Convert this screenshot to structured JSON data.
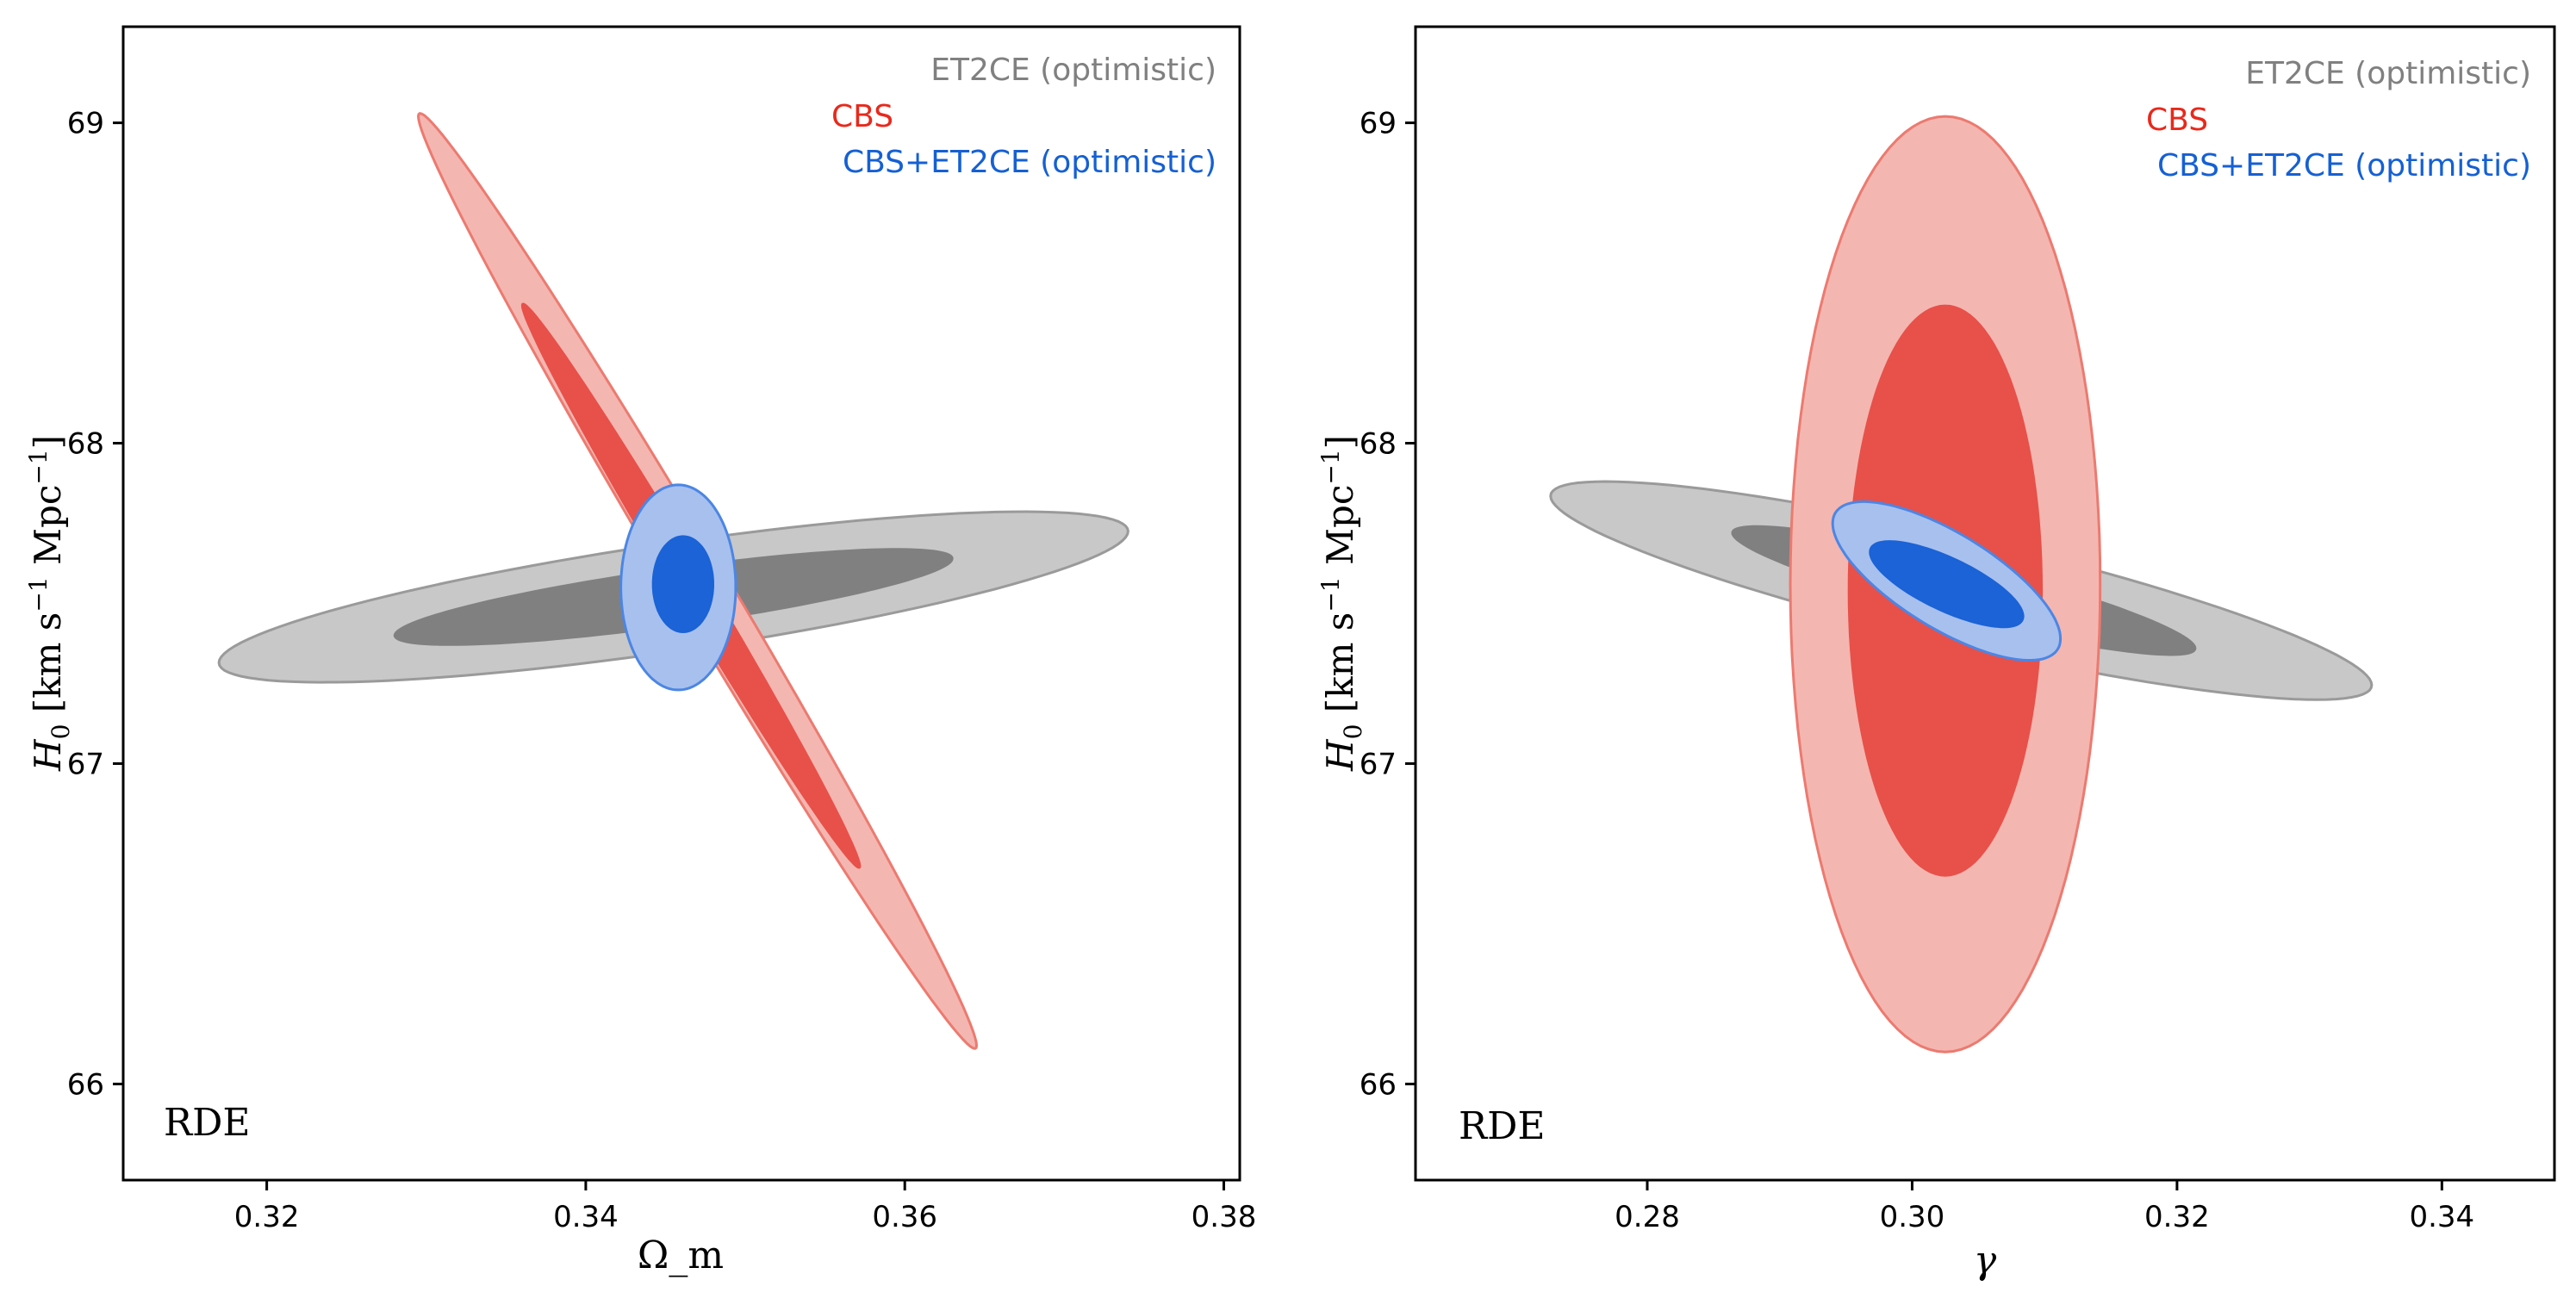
{
  "chart_data": [
    {
      "type": "contour",
      "panel": "left",
      "xlabel": "Ω_m",
      "ylabel": "H0 [km s^-1 Mpc^-1]",
      "xlim": [
        0.311,
        0.381
      ],
      "ylim": [
        65.7,
        69.3
      ],
      "xticks": [
        0.32,
        0.34,
        0.36,
        0.38
      ],
      "yticks": [
        66,
        67,
        68,
        69
      ],
      "xtick_labels": [
        "0.32",
        "0.34",
        "0.36",
        "0.38"
      ],
      "ytick_labels": [
        "66",
        "67",
        "68",
        "69"
      ],
      "annotation": "RDE",
      "legend": [
        {
          "label": "ET2CE (optimistic)",
          "color": "#808080"
        },
        {
          "label": "CBS",
          "color": "#e8291c"
        },
        {
          "label": "CBS+ET2CE (optimistic)",
          "color": "#1560d4"
        }
      ],
      "series": [
        {
          "name": "ET2CE (optimistic)",
          "level": "2sigma",
          "center": [
            0.3455,
            67.52
          ],
          "x_half_range": 0.0285,
          "y_at_xmin": 67.33,
          "y_at_xmax": 67.74,
          "fill": "#c8c8c8",
          "stroke": "#9a9a9a"
        },
        {
          "name": "ET2CE (optimistic)",
          "level": "1sigma",
          "center": [
            0.3455,
            67.52
          ],
          "x_half_range": 0.0175,
          "y_at_xmin": 67.42,
          "y_at_xmax": 67.66,
          "fill": "#808080",
          "stroke": "#808080"
        },
        {
          "name": "CBS",
          "level": "2sigma",
          "x_at_top": 0.3295,
          "y_top": 69.02,
          "x_at_bottom": 0.3645,
          "y_bottom": 66.12,
          "fill": "#f4b6b0",
          "stroke": "#ec7a70"
        },
        {
          "name": "CBS",
          "level": "1sigma",
          "x_at_top": 0.336,
          "y_top": 68.43,
          "x_at_bottom": 0.3572,
          "y_bottom": 66.68,
          "fill": "#e8504a",
          "stroke": "#e8504a"
        },
        {
          "name": "CBS+ET2CE (optimistic)",
          "level": "2sigma",
          "center": [
            0.3458,
            67.55
          ],
          "x_half_range": 0.0036,
          "y_half_range": 0.32,
          "fill": "#a8c0ee",
          "stroke": "#4c86e4"
        },
        {
          "name": "CBS+ET2CE (optimistic)",
          "level": "1sigma",
          "center": [
            0.3461,
            67.56
          ],
          "x_half_range": 0.0019,
          "y_half_range": 0.15,
          "fill": "#1b63d6",
          "stroke": "#1b63d6"
        }
      ]
    },
    {
      "type": "contour",
      "panel": "right",
      "xlabel": "γ",
      "ylabel": "H0 [km s^-1 Mpc^-1]",
      "xlim": [
        0.2625,
        0.3485
      ],
      "ylim": [
        65.7,
        69.3
      ],
      "xticks": [
        0.28,
        0.3,
        0.32,
        0.34
      ],
      "yticks": [
        66,
        67,
        68,
        69
      ],
      "xtick_labels": [
        "0.28",
        "0.30",
        "0.32",
        "0.34"
      ],
      "ytick_labels": [
        "66",
        "67",
        "68",
        "69"
      ],
      "annotation": "RDE",
      "legend": [
        {
          "label": "ET2CE (optimistic)",
          "color": "#808080"
        },
        {
          "label": "CBS",
          "color": "#e8291c"
        },
        {
          "label": "CBS+ET2CE (optimistic)",
          "color": "#1560d4"
        }
      ],
      "series": [
        {
          "name": "ET2CE (optimistic)",
          "level": "2sigma",
          "center": [
            0.3037,
            67.54
          ],
          "x_half_range": 0.031,
          "y_at_xmin": 67.84,
          "y_at_xmax": 67.25,
          "fill": "#c8c8c8",
          "stroke": "#9a9a9a"
        },
        {
          "name": "ET2CE (optimistic)",
          "level": "1sigma",
          "center": [
            0.3039,
            67.54
          ],
          "x_half_range": 0.0175,
          "y_at_xmin": 67.72,
          "y_at_xmax": 67.36,
          "fill": "#808080",
          "stroke": "#808080"
        },
        {
          "name": "CBS",
          "level": "2sigma",
          "center": [
            0.3025,
            67.56
          ],
          "x_half_range": 0.0117,
          "y_half_range": 1.46,
          "fill": "#f4b6b0",
          "stroke": "#ec7a70"
        },
        {
          "name": "CBS",
          "level": "1sigma",
          "center": [
            0.3025,
            67.54
          ],
          "x_half_range": 0.0073,
          "y_half_range": 0.89,
          "fill": "#e8504a",
          "stroke": "#e8504a"
        },
        {
          "name": "CBS+ET2CE (optimistic)",
          "level": "2sigma",
          "center": [
            0.3026,
            67.57
          ],
          "x_half_range": 0.0086,
          "y_at_xmin": 67.75,
          "y_at_xmax": 67.39,
          "fill": "#a8c0ee",
          "stroke": "#4c86e4"
        },
        {
          "name": "CBS+ET2CE (optimistic)",
          "level": "1sigma",
          "center": [
            0.3026,
            67.56
          ],
          "x_half_range": 0.0058,
          "y_at_xmin": 67.66,
          "y_at_xmax": 67.46,
          "fill": "#1b63d6",
          "stroke": "#1b63d6"
        }
      ]
    }
  ]
}
